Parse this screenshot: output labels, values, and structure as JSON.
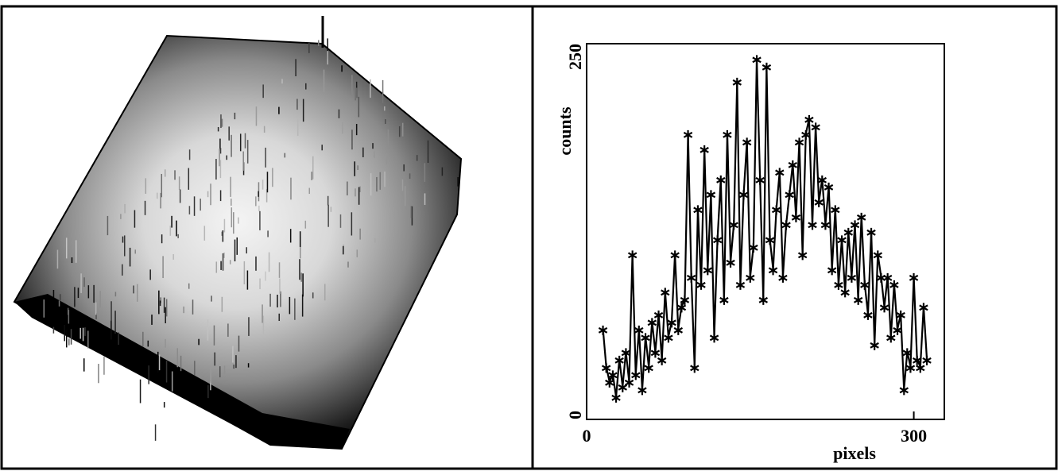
{
  "chart_data": {
    "type": "line",
    "xlabel": "pixels",
    "ylabel": "counts",
    "xlim": [
      0,
      328
    ],
    "ylim": [
      0,
      250
    ],
    "xticks": [
      0,
      300
    ],
    "yticks": [
      0,
      250
    ],
    "series": [
      {
        "color": "#000000",
        "x": [
          15,
          18,
          21,
          24,
          27,
          30,
          33,
          36,
          39,
          42,
          45,
          48,
          51,
          54,
          57,
          60,
          63,
          66,
          69,
          72,
          75,
          78,
          81,
          84,
          87,
          90,
          93,
          96,
          99,
          102,
          105,
          108,
          111,
          114,
          117,
          120,
          123,
          126,
          129,
          132,
          135,
          138,
          141,
          144,
          147,
          150,
          153,
          156,
          159,
          162,
          165,
          168,
          171,
          174,
          177,
          180,
          183,
          186,
          189,
          192,
          195,
          198,
          201,
          204,
          207,
          210,
          213,
          216,
          219,
          222,
          225,
          228,
          231,
          234,
          237,
          240,
          243,
          246,
          249,
          252,
          255,
          258,
          261,
          264,
          267,
          270,
          273,
          276,
          279,
          282,
          285,
          288,
          291,
          294,
          297,
          300,
          303,
          306,
          309,
          312
        ],
        "values": [
          60,
          35,
          25,
          30,
          15,
          40,
          22,
          45,
          25,
          110,
          30,
          60,
          20,
          55,
          35,
          65,
          45,
          70,
          40,
          85,
          55,
          65,
          110,
          60,
          75,
          80,
          190,
          95,
          35,
          140,
          90,
          180,
          100,
          150,
          55,
          120,
          160,
          80,
          190,
          105,
          130,
          225,
          90,
          150,
          185,
          95,
          115,
          240,
          160,
          80,
          235,
          120,
          100,
          140,
          165,
          95,
          130,
          150,
          170,
          135,
          185,
          110,
          190,
          200,
          130,
          195,
          145,
          160,
          130,
          155,
          100,
          140,
          90,
          120,
          85,
          125,
          95,
          130,
          80,
          135,
          90,
          70,
          125,
          50,
          110,
          95,
          75,
          95,
          55,
          90,
          60,
          70,
          20,
          45,
          35,
          95,
          40,
          35,
          75,
          40
        ]
      }
    ]
  }
}
